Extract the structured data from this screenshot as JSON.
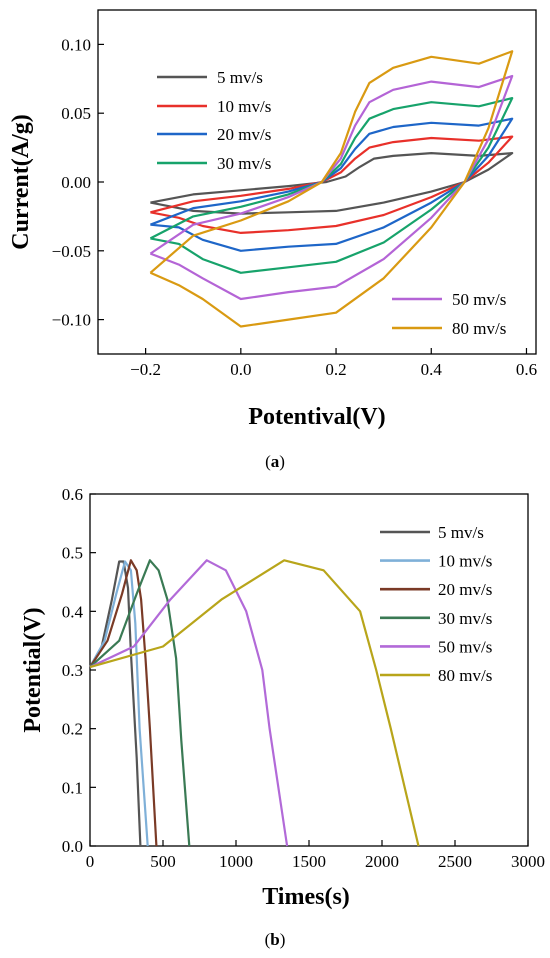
{
  "chart_data": [
    {
      "type": "line",
      "panel_label": "a",
      "xlabel": "Potentival(V)",
      "ylabel": "Current(A/g)",
      "xlim": [
        -0.3,
        0.62
      ],
      "ylim": [
        -0.125,
        0.125
      ],
      "xticks": [
        -0.2,
        0.0,
        0.2,
        0.4,
        0.6
      ],
      "xtick_labels": [
        "−0.2",
        "0.0",
        "0.2",
        "0.4",
        "0.6"
      ],
      "yticks": [
        -0.1,
        -0.05,
        0.0,
        0.05,
        0.1
      ],
      "ytick_labels": [
        "−0.10",
        "−0.05",
        "0.00",
        "0.05",
        "0.10"
      ],
      "legend": [
        "top-left",
        "bottom-right"
      ],
      "series": [
        {
          "name": "5 mv/s",
          "color": "#555555",
          "amp": 0.21,
          "upper": [
            [
              -0.19,
              -0.015
            ],
            [
              -0.1,
              -0.009
            ],
            [
              0.0,
              -0.006
            ],
            [
              0.1,
              -0.003
            ],
            [
              0.18,
              0.0
            ],
            [
              0.22,
              0.004
            ],
            [
              0.25,
              0.011
            ],
            [
              0.28,
              0.017
            ],
            [
              0.32,
              0.019
            ],
            [
              0.4,
              0.021
            ],
            [
              0.5,
              0.019
            ],
            [
              0.57,
              0.021
            ]
          ],
          "lower": [
            [
              0.57,
              0.021
            ],
            [
              0.52,
              0.009
            ],
            [
              0.47,
              0.0
            ],
            [
              0.4,
              -0.007
            ],
            [
              0.3,
              -0.015
            ],
            [
              0.2,
              -0.021
            ],
            [
              0.1,
              -0.022
            ],
            [
              0.0,
              -0.023
            ],
            [
              -0.1,
              -0.021
            ],
            [
              -0.19,
              -0.015
            ]
          ]
        },
        {
          "name": "10 mv/s",
          "color": "#e8302a",
          "amp": 0.33,
          "upper": [
            [
              -0.19,
              -0.022
            ],
            [
              -0.1,
              -0.014
            ],
            [
              0.0,
              -0.01
            ],
            [
              0.1,
              -0.005
            ],
            [
              0.17,
              0.0
            ],
            [
              0.21,
              0.007
            ],
            [
              0.24,
              0.017
            ],
            [
              0.27,
              0.025
            ],
            [
              0.32,
              0.029
            ],
            [
              0.4,
              0.032
            ],
            [
              0.5,
              0.03
            ],
            [
              0.57,
              0.033
            ]
          ],
          "lower": [
            [
              0.57,
              0.033
            ],
            [
              0.52,
              0.014
            ],
            [
              0.47,
              0.0
            ],
            [
              0.4,
              -0.011
            ],
            [
              0.3,
              -0.024
            ],
            [
              0.2,
              -0.032
            ],
            [
              0.1,
              -0.035
            ],
            [
              0.0,
              -0.037
            ],
            [
              -0.08,
              -0.032
            ],
            [
              -0.13,
              -0.026
            ],
            [
              -0.19,
              -0.022
            ]
          ]
        },
        {
          "name": "20 mv/s",
          "color": "#1e66c8",
          "amp": 0.46,
          "upper": [
            [
              -0.19,
              -0.031
            ],
            [
              -0.1,
              -0.019
            ],
            [
              0.0,
              -0.014
            ],
            [
              0.1,
              -0.007
            ],
            [
              0.17,
              0.0
            ],
            [
              0.21,
              0.01
            ],
            [
              0.24,
              0.024
            ],
            [
              0.27,
              0.035
            ],
            [
              0.32,
              0.04
            ],
            [
              0.4,
              0.043
            ],
            [
              0.5,
              0.041
            ],
            [
              0.57,
              0.046
            ]
          ],
          "lower": [
            [
              0.57,
              0.046
            ],
            [
              0.52,
              0.019
            ],
            [
              0.47,
              0.0
            ],
            [
              0.4,
              -0.015
            ],
            [
              0.3,
              -0.033
            ],
            [
              0.2,
              -0.045
            ],
            [
              0.1,
              -0.047
            ],
            [
              0.0,
              -0.05
            ],
            [
              -0.08,
              -0.042
            ],
            [
              -0.13,
              -0.033
            ],
            [
              -0.19,
              -0.031
            ]
          ]
        },
        {
          "name": "30 mv/s",
          "color": "#17a36b",
          "amp": 0.61,
          "upper": [
            [
              -0.19,
              -0.041
            ],
            [
              -0.1,
              -0.025
            ],
            [
              0.0,
              -0.018
            ],
            [
              0.1,
              -0.009
            ],
            [
              0.17,
              0.0
            ],
            [
              0.21,
              0.013
            ],
            [
              0.24,
              0.032
            ],
            [
              0.27,
              0.046
            ],
            [
              0.32,
              0.053
            ],
            [
              0.4,
              0.058
            ],
            [
              0.5,
              0.055
            ],
            [
              0.57,
              0.061
            ]
          ],
          "lower": [
            [
              0.57,
              0.061
            ],
            [
              0.52,
              0.025
            ],
            [
              0.47,
              0.0
            ],
            [
              0.4,
              -0.02
            ],
            [
              0.3,
              -0.044
            ],
            [
              0.2,
              -0.058
            ],
            [
              0.1,
              -0.062
            ],
            [
              0.0,
              -0.066
            ],
            [
              -0.08,
              -0.056
            ],
            [
              -0.13,
              -0.045
            ],
            [
              -0.19,
              -0.041
            ]
          ]
        },
        {
          "name": "50 mv/s",
          "color": "#b464d6",
          "amp": 0.77,
          "upper": [
            [
              -0.19,
              -0.052
            ],
            [
              -0.1,
              -0.031
            ],
            [
              0.0,
              -0.023
            ],
            [
              0.1,
              -0.011
            ],
            [
              0.17,
              0.0
            ],
            [
              0.21,
              0.017
            ],
            [
              0.24,
              0.041
            ],
            [
              0.27,
              0.058
            ],
            [
              0.32,
              0.067
            ],
            [
              0.4,
              0.073
            ],
            [
              0.5,
              0.069
            ],
            [
              0.57,
              0.077
            ]
          ],
          "lower": [
            [
              0.57,
              0.077
            ],
            [
              0.52,
              0.031
            ],
            [
              0.47,
              0.0
            ],
            [
              0.4,
              -0.026
            ],
            [
              0.3,
              -0.056
            ],
            [
              0.2,
              -0.076
            ],
            [
              0.1,
              -0.08
            ],
            [
              0.0,
              -0.085
            ],
            [
              -0.08,
              -0.07
            ],
            [
              -0.13,
              -0.06
            ],
            [
              -0.19,
              -0.052
            ]
          ]
        },
        {
          "name": "80 mv/s",
          "color": "#d99a12",
          "amp": 0.96,
          "upper": [
            [
              -0.19,
              -0.066
            ],
            [
              -0.1,
              -0.039
            ],
            [
              0.0,
              -0.028
            ],
            [
              0.1,
              -0.014
            ],
            [
              0.17,
              0.0
            ],
            [
              0.21,
              0.021
            ],
            [
              0.24,
              0.051
            ],
            [
              0.27,
              0.072
            ],
            [
              0.32,
              0.083
            ],
            [
              0.4,
              0.091
            ],
            [
              0.5,
              0.086
            ],
            [
              0.57,
              0.095
            ]
          ],
          "lower": [
            [
              0.57,
              0.095
            ],
            [
              0.52,
              0.039
            ],
            [
              0.47,
              0.0
            ],
            [
              0.4,
              -0.033
            ],
            [
              0.3,
              -0.07
            ],
            [
              0.2,
              -0.095
            ],
            [
              0.1,
              -0.1
            ],
            [
              0.0,
              -0.105
            ],
            [
              -0.08,
              -0.085
            ],
            [
              -0.13,
              -0.075
            ],
            [
              -0.19,
              -0.066
            ]
          ]
        }
      ]
    },
    {
      "type": "line",
      "panel_label": "b",
      "xlabel": "Times(s)",
      "ylabel": "Potential(V)",
      "xlim": [
        0,
        3000
      ],
      "ylim": [
        0.0,
        0.6
      ],
      "xticks": [
        0,
        500,
        1000,
        1500,
        2000,
        2500,
        3000
      ],
      "xtick_labels": [
        "0",
        "500",
        "1000",
        "1500",
        "2000",
        "2500",
        "3000"
      ],
      "yticks": [
        0.0,
        0.1,
        0.2,
        0.3,
        0.4,
        0.5,
        0.6
      ],
      "ytick_labels": [
        "0.0",
        "0.1",
        "0.2",
        "0.3",
        "0.4",
        "0.5",
        "0.6"
      ],
      "legend": "top-right",
      "series": [
        {
          "name": "5 mv/s",
          "color": "#555555",
          "points": [
            [
              0,
              0.305
            ],
            [
              80,
              0.34
            ],
            [
              150,
              0.42
            ],
            [
              200,
              0.485
            ],
            [
              230,
              0.485
            ],
            [
              260,
              0.44
            ],
            [
              280,
              0.33
            ],
            [
              320,
              0.15
            ],
            [
              345,
              0.0
            ]
          ]
        },
        {
          "name": "10 mv/s",
          "color": "#7fb0d8",
          "points": [
            [
              0,
              0.305
            ],
            [
              100,
              0.35
            ],
            [
              180,
              0.43
            ],
            [
              240,
              0.485
            ],
            [
              280,
              0.47
            ],
            [
              310,
              0.38
            ],
            [
              340,
              0.2
            ],
            [
              395,
              0.0
            ]
          ]
        },
        {
          "name": "20 mv/s",
          "color": "#7a3a26",
          "points": [
            [
              0,
              0.305
            ],
            [
              120,
              0.35
            ],
            [
              220,
              0.43
            ],
            [
              280,
              0.487
            ],
            [
              320,
              0.47
            ],
            [
              350,
              0.42
            ],
            [
              380,
              0.32
            ],
            [
              410,
              0.2
            ],
            [
              455,
              0.0
            ]
          ]
        },
        {
          "name": "30 mv/s",
          "color": "#3a7a54",
          "points": [
            [
              0,
              0.305
            ],
            [
              200,
              0.35
            ],
            [
              320,
              0.43
            ],
            [
              410,
              0.487
            ],
            [
              470,
              0.47
            ],
            [
              530,
              0.42
            ],
            [
              590,
              0.32
            ],
            [
              625,
              0.18
            ],
            [
              680,
              0.0
            ]
          ]
        },
        {
          "name": "50 mv/s",
          "color": "#b26ad8",
          "points": [
            [
              0,
              0.305
            ],
            [
              300,
              0.34
            ],
            [
              550,
              0.42
            ],
            [
              800,
              0.487
            ],
            [
              930,
              0.47
            ],
            [
              1070,
              0.4
            ],
            [
              1180,
              0.3
            ],
            [
              1230,
              0.2
            ],
            [
              1350,
              0.0
            ]
          ]
        },
        {
          "name": "80 mv/s",
          "color": "#b8a51a",
          "points": [
            [
              0,
              0.305
            ],
            [
              500,
              0.34
            ],
            [
              900,
              0.42
            ],
            [
              1330,
              0.487
            ],
            [
              1600,
              0.47
            ],
            [
              1850,
              0.4
            ],
            [
              1960,
              0.3
            ],
            [
              2060,
              0.2
            ],
            [
              2250,
              0.0
            ]
          ]
        }
      ]
    }
  ]
}
